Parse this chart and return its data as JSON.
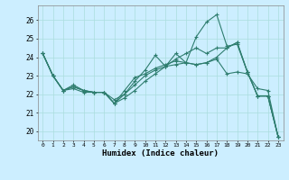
{
  "xlabel": "Humidex (Indice chaleur)",
  "bg_color": "#cceeff",
  "line_color": "#2e7d6e",
  "grid_color": "#aadddd",
  "xlim": [
    -0.5,
    23.5
  ],
  "ylim": [
    19.5,
    26.8
  ],
  "yticks": [
    20,
    21,
    22,
    23,
    24,
    25,
    26
  ],
  "xticks": [
    0,
    1,
    2,
    3,
    4,
    5,
    6,
    7,
    8,
    9,
    10,
    11,
    12,
    13,
    14,
    15,
    16,
    17,
    18,
    19,
    20,
    21,
    22,
    23
  ],
  "line1": [
    24.2,
    23.0,
    22.2,
    22.5,
    22.2,
    22.1,
    22.1,
    21.5,
    22.0,
    22.7,
    23.3,
    24.1,
    23.5,
    24.2,
    23.7,
    25.1,
    25.9,
    26.3,
    24.6,
    24.7,
    23.2,
    21.9,
    21.9,
    19.7
  ],
  "line2": [
    24.2,
    23.0,
    22.2,
    22.4,
    22.2,
    22.1,
    22.1,
    21.5,
    22.2,
    22.9,
    23.1,
    23.4,
    23.6,
    23.8,
    23.7,
    23.6,
    23.7,
    24.0,
    24.5,
    24.8,
    23.2,
    21.9,
    21.9,
    19.7
  ],
  "line3": [
    24.2,
    23.0,
    22.2,
    22.4,
    22.2,
    22.1,
    22.1,
    21.7,
    22.0,
    22.5,
    23.0,
    23.3,
    23.5,
    23.6,
    23.7,
    23.6,
    23.7,
    23.9,
    23.1,
    23.2,
    23.1,
    22.3,
    22.2,
    19.7
  ],
  "line4": [
    24.2,
    23.0,
    22.2,
    22.3,
    22.1,
    22.1,
    22.1,
    21.5,
    21.8,
    22.2,
    22.7,
    23.1,
    23.5,
    23.9,
    24.2,
    24.5,
    24.2,
    24.5,
    24.5,
    24.8,
    23.2,
    21.9,
    21.9,
    19.7
  ]
}
